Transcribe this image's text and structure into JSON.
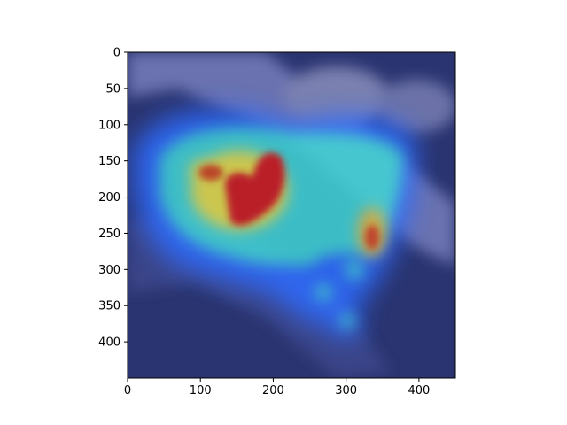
{
  "chart_data": {
    "type": "heatmap",
    "title": "",
    "xlabel": "",
    "ylabel": "",
    "xlim": [
      0,
      450
    ],
    "ylim": [
      450,
      0
    ],
    "xticks": [
      0,
      100,
      200,
      300,
      400
    ],
    "yticks": [
      0,
      50,
      100,
      150,
      200,
      250,
      300,
      350,
      400
    ],
    "grid": false,
    "colormap": "jet",
    "overlay_alpha": 0.5,
    "background_image": "bird-on-branch-photo",
    "hotspots": [
      {
        "x": 165,
        "y": 205,
        "value": 1.0
      },
      {
        "x": 125,
        "y": 185,
        "value": 0.7
      },
      {
        "x": 190,
        "y": 175,
        "value": 0.75
      },
      {
        "x": 335,
        "y": 255,
        "value": 0.6
      },
      {
        "x": 260,
        "y": 250,
        "value": 0.45
      },
      {
        "x": 390,
        "y": 180,
        "value": 0.3
      },
      {
        "x": 400,
        "y": 305,
        "value": 0.35
      },
      {
        "x": 300,
        "y": 365,
        "value": 0.3
      },
      {
        "x": 60,
        "y": 230,
        "value": 0.3
      }
    ]
  }
}
